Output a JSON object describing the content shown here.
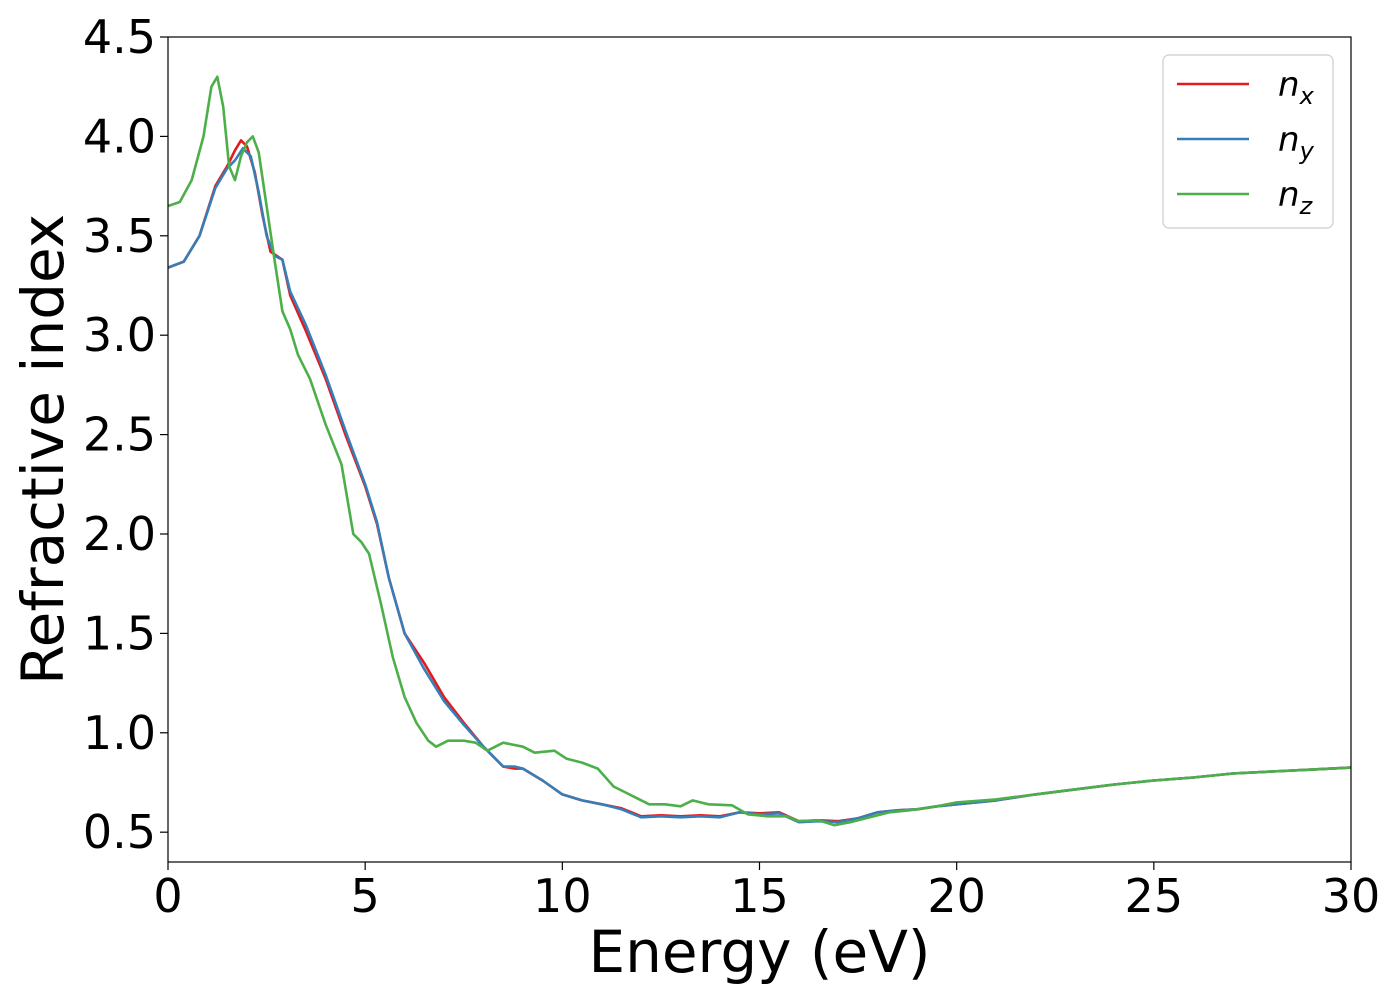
{
  "chart_data": {
    "type": "line",
    "title": "",
    "xlabel": "Energy (eV)",
    "ylabel": "Refractive index",
    "xlim": [
      0,
      30
    ],
    "ylim": [
      0.35,
      4.5
    ],
    "x_ticks": [
      0,
      5,
      10,
      15,
      20,
      25,
      30
    ],
    "x_tick_labels": [
      "0",
      "5",
      "10",
      "15",
      "20",
      "25",
      "30"
    ],
    "y_ticks": [
      0.5,
      1.0,
      1.5,
      2.0,
      2.5,
      3.0,
      3.5,
      4.0,
      4.5
    ],
    "y_tick_labels": [
      "0.5",
      "1.0",
      "1.5",
      "2.0",
      "2.5",
      "3.0",
      "3.5",
      "4.0",
      "4.5"
    ],
    "grid": false,
    "legend_position": "top-right",
    "series": [
      {
        "name": "n",
        "subscript": "x",
        "color": "#e41a1c",
        "points": [
          [
            0,
            3.34
          ],
          [
            0.4,
            3.37
          ],
          [
            0.8,
            3.5
          ],
          [
            1.2,
            3.75
          ],
          [
            1.5,
            3.85
          ],
          [
            1.7,
            3.93
          ],
          [
            1.85,
            3.98
          ],
          [
            2.0,
            3.95
          ],
          [
            2.2,
            3.82
          ],
          [
            2.4,
            3.6
          ],
          [
            2.6,
            3.42
          ],
          [
            2.9,
            3.38
          ],
          [
            3.1,
            3.2
          ],
          [
            3.5,
            3.02
          ],
          [
            4.0,
            2.78
          ],
          [
            4.5,
            2.5
          ],
          [
            5.0,
            2.24
          ],
          [
            5.3,
            2.05
          ],
          [
            5.6,
            1.78
          ],
          [
            6.0,
            1.5
          ],
          [
            6.5,
            1.35
          ],
          [
            7.0,
            1.18
          ],
          [
            7.5,
            1.05
          ],
          [
            8.0,
            0.93
          ],
          [
            8.5,
            0.83
          ],
          [
            8.8,
            0.82
          ],
          [
            9.0,
            0.82
          ],
          [
            9.5,
            0.76
          ],
          [
            10.0,
            0.69
          ],
          [
            10.5,
            0.66
          ],
          [
            11.0,
            0.64
          ],
          [
            11.5,
            0.62
          ],
          [
            12.0,
            0.58
          ],
          [
            12.5,
            0.585
          ],
          [
            13.0,
            0.58
          ],
          [
            13.5,
            0.585
          ],
          [
            14.0,
            0.58
          ],
          [
            14.5,
            0.6
          ],
          [
            15.0,
            0.595
          ],
          [
            15.5,
            0.6
          ],
          [
            16.0,
            0.555
          ],
          [
            16.5,
            0.56
          ],
          [
            17.0,
            0.555
          ],
          [
            17.5,
            0.57
          ],
          [
            18.0,
            0.6
          ],
          [
            18.5,
            0.61
          ],
          [
            19.0,
            0.615
          ],
          [
            19.5,
            0.63
          ],
          [
            20.0,
            0.64
          ],
          [
            21.0,
            0.66
          ],
          [
            22.0,
            0.69
          ],
          [
            23.0,
            0.715
          ],
          [
            24.0,
            0.74
          ],
          [
            25.0,
            0.76
          ],
          [
            26.0,
            0.775
          ],
          [
            27.0,
            0.795
          ],
          [
            28.0,
            0.805
          ],
          [
            29.0,
            0.815
          ],
          [
            30.0,
            0.825
          ]
        ]
      },
      {
        "name": "n",
        "subscript": "y",
        "color": "#377eb8",
        "points": [
          [
            0,
            3.34
          ],
          [
            0.4,
            3.37
          ],
          [
            0.8,
            3.5
          ],
          [
            1.2,
            3.74
          ],
          [
            1.5,
            3.84
          ],
          [
            1.7,
            3.88
          ],
          [
            1.9,
            3.94
          ],
          [
            2.1,
            3.9
          ],
          [
            2.3,
            3.72
          ],
          [
            2.5,
            3.5
          ],
          [
            2.7,
            3.4
          ],
          [
            2.9,
            3.38
          ],
          [
            3.1,
            3.22
          ],
          [
            3.5,
            3.05
          ],
          [
            4.0,
            2.8
          ],
          [
            4.5,
            2.52
          ],
          [
            5.0,
            2.25
          ],
          [
            5.3,
            2.06
          ],
          [
            5.6,
            1.78
          ],
          [
            6.0,
            1.5
          ],
          [
            6.5,
            1.32
          ],
          [
            7.0,
            1.16
          ],
          [
            7.5,
            1.04
          ],
          [
            8.0,
            0.93
          ],
          [
            8.5,
            0.83
          ],
          [
            8.8,
            0.83
          ],
          [
            9.0,
            0.82
          ],
          [
            9.5,
            0.76
          ],
          [
            10.0,
            0.69
          ],
          [
            10.5,
            0.66
          ],
          [
            11.0,
            0.64
          ],
          [
            11.5,
            0.615
          ],
          [
            12.0,
            0.575
          ],
          [
            12.5,
            0.58
          ],
          [
            13.0,
            0.575
          ],
          [
            13.5,
            0.58
          ],
          [
            14.0,
            0.575
          ],
          [
            14.5,
            0.6
          ],
          [
            15.0,
            0.59
          ],
          [
            15.5,
            0.595
          ],
          [
            16.0,
            0.55
          ],
          [
            16.5,
            0.555
          ],
          [
            17.0,
            0.55
          ],
          [
            17.5,
            0.57
          ],
          [
            18.0,
            0.6
          ],
          [
            18.5,
            0.61
          ],
          [
            19.0,
            0.615
          ],
          [
            19.5,
            0.63
          ],
          [
            20.0,
            0.64
          ],
          [
            21.0,
            0.66
          ],
          [
            22.0,
            0.69
          ],
          [
            23.0,
            0.715
          ],
          [
            24.0,
            0.74
          ],
          [
            25.0,
            0.76
          ],
          [
            26.0,
            0.775
          ],
          [
            27.0,
            0.795
          ],
          [
            28.0,
            0.805
          ],
          [
            29.0,
            0.815
          ],
          [
            30.0,
            0.825
          ]
        ]
      },
      {
        "name": "n",
        "subscript": "z",
        "color": "#4daf4a",
        "points": [
          [
            0,
            3.65
          ],
          [
            0.3,
            3.67
          ],
          [
            0.6,
            3.78
          ],
          [
            0.9,
            4.0
          ],
          [
            1.1,
            4.25
          ],
          [
            1.25,
            4.3
          ],
          [
            1.4,
            4.15
          ],
          [
            1.55,
            3.85
          ],
          [
            1.7,
            3.78
          ],
          [
            1.85,
            3.9
          ],
          [
            2.0,
            3.97
          ],
          [
            2.15,
            4.0
          ],
          [
            2.3,
            3.92
          ],
          [
            2.5,
            3.65
          ],
          [
            2.7,
            3.38
          ],
          [
            2.9,
            3.12
          ],
          [
            3.1,
            3.03
          ],
          [
            3.3,
            2.9
          ],
          [
            3.6,
            2.78
          ],
          [
            4.0,
            2.55
          ],
          [
            4.4,
            2.35
          ],
          [
            4.7,
            2.0
          ],
          [
            4.9,
            1.96
          ],
          [
            5.1,
            1.9
          ],
          [
            5.4,
            1.65
          ],
          [
            5.7,
            1.38
          ],
          [
            6.0,
            1.18
          ],
          [
            6.3,
            1.05
          ],
          [
            6.6,
            0.96
          ],
          [
            6.8,
            0.93
          ],
          [
            7.1,
            0.96
          ],
          [
            7.5,
            0.96
          ],
          [
            7.8,
            0.95
          ],
          [
            8.1,
            0.91
          ],
          [
            8.5,
            0.95
          ],
          [
            9.0,
            0.93
          ],
          [
            9.3,
            0.9
          ],
          [
            9.8,
            0.91
          ],
          [
            10.1,
            0.87
          ],
          [
            10.5,
            0.85
          ],
          [
            10.9,
            0.82
          ],
          [
            11.3,
            0.73
          ],
          [
            11.8,
            0.68
          ],
          [
            12.2,
            0.64
          ],
          [
            12.6,
            0.64
          ],
          [
            13.0,
            0.63
          ],
          [
            13.3,
            0.66
          ],
          [
            13.7,
            0.64
          ],
          [
            14.3,
            0.635
          ],
          [
            14.7,
            0.59
          ],
          [
            15.2,
            0.58
          ],
          [
            15.7,
            0.58
          ],
          [
            16.0,
            0.555
          ],
          [
            16.5,
            0.56
          ],
          [
            16.9,
            0.535
          ],
          [
            17.3,
            0.55
          ],
          [
            17.8,
            0.575
          ],
          [
            18.3,
            0.6
          ],
          [
            18.8,
            0.61
          ],
          [
            19.5,
            0.63
          ],
          [
            20.0,
            0.65
          ],
          [
            21.0,
            0.665
          ],
          [
            22.0,
            0.69
          ],
          [
            23.0,
            0.715
          ],
          [
            24.0,
            0.74
          ],
          [
            25.0,
            0.76
          ],
          [
            26.0,
            0.775
          ],
          [
            27.0,
            0.795
          ],
          [
            28.0,
            0.805
          ],
          [
            29.0,
            0.815
          ],
          [
            30.0,
            0.825
          ]
        ]
      }
    ]
  }
}
